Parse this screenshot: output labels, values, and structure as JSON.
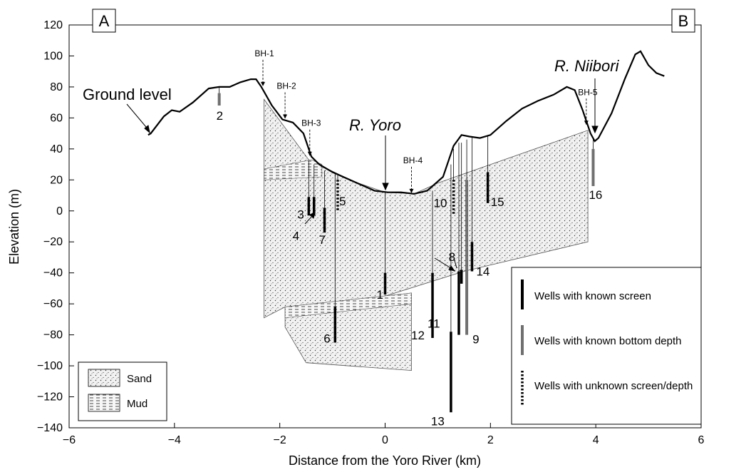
{
  "figure": {
    "panel_left": "A",
    "panel_right": "B",
    "ground_label": "Ground level",
    "river_yoro": "R. Yoro",
    "river_niibori": "R. Niibori",
    "colors": {
      "screen_known": "#000000",
      "bottom_known": "#707070",
      "unknown": "#000000",
      "ground": "#000000"
    }
  },
  "chart_data": {
    "type": "diagram",
    "xlabel": "Distance from the Yoro River (km)",
    "ylabel": "Elevation (m)",
    "xlim": [
      -6,
      6
    ],
    "ylim": [
      -140,
      120
    ],
    "xticks": [
      -6,
      -4,
      -2,
      0,
      2,
      4,
      6
    ],
    "yticks": [
      120,
      100,
      80,
      60,
      40,
      20,
      0,
      -20,
      -40,
      -60,
      -80,
      -100,
      -120,
      -140
    ],
    "xtick_labels": [
      "−6",
      "−4",
      "−2",
      "0",
      "2",
      "4",
      "6"
    ],
    "ytick_labels": [
      "120",
      "100",
      "80",
      "60",
      "40",
      "20",
      "0",
      "−20",
      "−40",
      "−60",
      "−80",
      "−100",
      "−120",
      "−140"
    ],
    "ground_level": [
      [
        -4.5,
        49
      ],
      [
        -4.45,
        50
      ],
      [
        -4.2,
        61
      ],
      [
        -4.05,
        65
      ],
      [
        -3.9,
        64
      ],
      [
        -3.65,
        70
      ],
      [
        -3.35,
        79
      ],
      [
        -3.15,
        80
      ],
      [
        -2.95,
        80
      ],
      [
        -2.75,
        83
      ],
      [
        -2.55,
        85
      ],
      [
        -2.45,
        85
      ],
      [
        -2.35,
        80
      ],
      [
        -2.15,
        68
      ],
      [
        -1.95,
        59
      ],
      [
        -1.75,
        57
      ],
      [
        -1.55,
        50
      ],
      [
        -1.4,
        35
      ],
      [
        -1.25,
        30
      ],
      [
        -1.0,
        25
      ],
      [
        -0.6,
        19
      ],
      [
        -0.2,
        13
      ],
      [
        0.05,
        12
      ],
      [
        0.3,
        12
      ],
      [
        0.55,
        11
      ],
      [
        0.8,
        13
      ],
      [
        1.1,
        22
      ],
      [
        1.3,
        42
      ],
      [
        1.45,
        49
      ],
      [
        1.6,
        48
      ],
      [
        1.8,
        47
      ],
      [
        2.0,
        49
      ],
      [
        2.3,
        58
      ],
      [
        2.6,
        66
      ],
      [
        2.9,
        71
      ],
      [
        3.2,
        75
      ],
      [
        3.45,
        80
      ],
      [
        3.6,
        78
      ],
      [
        3.75,
        65
      ],
      [
        3.9,
        50
      ],
      [
        3.98,
        45
      ],
      [
        4.05,
        47
      ],
      [
        4.3,
        63
      ],
      [
        4.55,
        85
      ],
      [
        4.75,
        101
      ],
      [
        4.85,
        103
      ],
      [
        5.0,
        94
      ],
      [
        5.15,
        89
      ],
      [
        5.3,
        87
      ]
    ],
    "boreholes": [
      {
        "name": "BH-1",
        "x": -2.32,
        "y": 80
      },
      {
        "name": "BH-2",
        "x": -1.9,
        "y": 59
      },
      {
        "name": "BH-3",
        "x": -1.43,
        "y": 35
      },
      {
        "name": "BH-4",
        "x": 0.5,
        "y": 11
      },
      {
        "name": "BH-5",
        "x": 3.82,
        "y": 55
      }
    ],
    "wells": [
      {
        "id": "1",
        "x": 0.0,
        "top": 12,
        "screen": [
          -54,
          -40
        ],
        "type": "screen"
      },
      {
        "id": "2",
        "x": -3.15,
        "top": 80,
        "screen": [
          68,
          76
        ],
        "type": "bottom"
      },
      {
        "id": "3",
        "x": -1.45,
        "top": 32,
        "screen": [
          -3,
          9
        ],
        "type": "screen"
      },
      {
        "id": "4",
        "x": -1.35,
        "top": 30,
        "screen": [
          -3,
          9
        ],
        "type": "screen"
      },
      {
        "id": "5",
        "x": -0.9,
        "top": 23,
        "screen": [
          0,
          20
        ],
        "type": "unknown"
      },
      {
        "id": "6",
        "x": -0.95,
        "top": 24,
        "screen": [
          -85,
          -62
        ],
        "type": "screen"
      },
      {
        "id": "7",
        "x": -1.15,
        "top": 26,
        "screen": [
          -14,
          2
        ],
        "type": "screen"
      },
      {
        "id": "8",
        "x": 1.45,
        "top": 44,
        "screen": [
          -47,
          -38
        ],
        "type": "screen"
      },
      {
        "id": "9",
        "x": 1.55,
        "top": 46,
        "screen": [
          -80,
          20
        ],
        "type": "bottom"
      },
      {
        "id": "10",
        "x": 1.3,
        "top": 40,
        "screen": [
          -3,
          20
        ],
        "type": "unknown"
      },
      {
        "id": "11",
        "x": 1.4,
        "top": 44,
        "screen": [
          -80,
          -39
        ],
        "type": "screen"
      },
      {
        "id": "12",
        "x": 0.9,
        "top": 13,
        "screen": [
          -82,
          -40
        ],
        "type": "screen"
      },
      {
        "id": "13",
        "x": 1.25,
        "top": 30,
        "screen": [
          -130,
          -78
        ],
        "type": "screen"
      },
      {
        "id": "14",
        "x": 1.65,
        "top": 48,
        "screen": [
          -39,
          -20
        ],
        "type": "screen"
      },
      {
        "id": "15",
        "x": 1.95,
        "top": 48,
        "screen": [
          5,
          25
        ],
        "type": "screen"
      },
      {
        "id": "16",
        "x": 3.95,
        "top": 46,
        "screen": [
          16,
          40
        ],
        "type": "bottom"
      }
    ],
    "geology": {
      "sand_upper": [
        [
          -2.3,
          72
        ],
        [
          -1.45,
          33
        ],
        [
          -0.6,
          19
        ],
        [
          0.0,
          12
        ],
        [
          0.55,
          11
        ],
        [
          1.0,
          18
        ],
        [
          3.85,
          52
        ],
        [
          3.85,
          -20
        ],
        [
          1.5,
          -39
        ],
        [
          0.0,
          -55
        ],
        [
          -1.9,
          -62
        ],
        [
          -2.3,
          -69
        ]
      ],
      "sand_lower": [
        [
          -1.9,
          -62
        ],
        [
          0.0,
          -55
        ],
        [
          0.5,
          -53
        ],
        [
          0.5,
          -103
        ],
        [
          -1.5,
          -98
        ],
        [
          -1.9,
          -75
        ]
      ],
      "mud_layers": [
        [
          [
            -1.9,
            -62
          ],
          [
            0.5,
            -53
          ],
          [
            0.5,
            -60
          ],
          [
            -1.9,
            -69
          ]
        ],
        [
          [
            -2.3,
            27
          ],
          [
            -1.4,
            33
          ],
          [
            -1.2,
            30
          ],
          [
            -1.2,
            22
          ],
          [
            -2.3,
            20
          ]
        ]
      ]
    }
  },
  "legend_geo": {
    "items": [
      {
        "label": "Sand"
      },
      {
        "label": "Mud"
      }
    ]
  },
  "legend_wells": {
    "items": [
      {
        "label": "Wells with known screen"
      },
      {
        "label": "Wells with known bottom depth"
      },
      {
        "label": "Wells with unknown screen/depth"
      }
    ]
  }
}
